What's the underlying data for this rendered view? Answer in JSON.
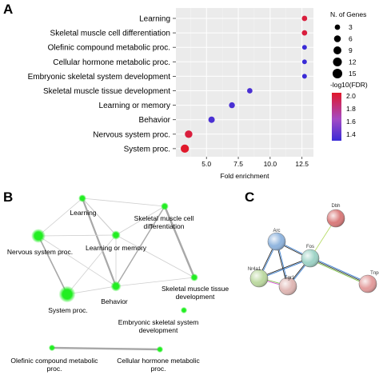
{
  "panels": {
    "a": {
      "letter": "A"
    },
    "b": {
      "letter": "B"
    },
    "c": {
      "letter": "C"
    }
  },
  "chart_data": {
    "type": "scatter",
    "categories": [
      "Learning",
      "Skeletal muscle cell differentiation",
      "Olefinic compound metabolic proc.",
      "Cellular hormone metabolic proc.",
      "Embryonic skeletal system development",
      "Skeletal muscle tissue development",
      "Learning or memory",
      "Behavior",
      "Nervous system proc.",
      "System proc."
    ],
    "x": [
      12.7,
      12.7,
      12.7,
      12.7,
      12.7,
      8.4,
      7.0,
      5.4,
      3.6,
      3.3
    ],
    "size_genes": [
      3,
      3,
      2,
      2,
      2,
      3,
      4,
      5,
      8,
      10
    ],
    "neg_log10_fdr": [
      2.0,
      2.0,
      1.3,
      1.3,
      1.3,
      1.35,
      1.35,
      1.35,
      2.0,
      2.05
    ],
    "xlabel": "Fold enrichment",
    "xticks": [
      "5.0",
      "7.5",
      "10.0",
      "12.5"
    ],
    "xtick_values": [
      5.0,
      7.5,
      10.0,
      12.5
    ],
    "xlim": [
      2.6,
      13.4
    ],
    "grid": true,
    "legend_position": "right",
    "size_legend": {
      "title": "N. of Genes",
      "values": [
        3,
        6,
        9,
        12,
        15
      ]
    },
    "color_legend": {
      "title": "-log10(FDR)",
      "ticks": [
        "1.4",
        "1.6",
        "1.8",
        "2.0"
      ],
      "tick_values": [
        1.4,
        1.6,
        1.8,
        2.0
      ],
      "range": [
        1.3,
        2.05
      ]
    }
  },
  "network_b": {
    "nodes": [
      {
        "id": "learning",
        "label": "Learning",
        "size": 3
      },
      {
        "id": "smcd",
        "label": "Skeletal muscle cell differentiation",
        "size": 3
      },
      {
        "id": "nsp",
        "label": "Nervous system proc.",
        "size": 8
      },
      {
        "id": "lom",
        "label": "Learning or memory",
        "size": 4
      },
      {
        "id": "sp",
        "label": "System proc.",
        "size": 10
      },
      {
        "id": "beh",
        "label": "Behavior",
        "size": 5
      },
      {
        "id": "smtd",
        "label": "Skeletal muscle tissue development",
        "size": 3
      },
      {
        "id": "essd",
        "label": "Embryonic skeletal system development",
        "size": 2
      },
      {
        "id": "ocmp",
        "label": "Olefinic compound metabolic proc.",
        "size": 2
      },
      {
        "id": "chmp",
        "label": "Cellular hormone metabolic proc.",
        "size": 2
      }
    ],
    "edges": [
      [
        "learning",
        "lom"
      ],
      [
        "learning",
        "beh"
      ],
      [
        "learning",
        "nsp"
      ],
      [
        "learning",
        "smcd"
      ],
      [
        "smcd",
        "lom"
      ],
      [
        "smcd",
        "smtd"
      ],
      [
        "smcd",
        "beh"
      ],
      [
        "lom",
        "beh"
      ],
      [
        "lom",
        "nsp"
      ],
      [
        "lom",
        "sp"
      ],
      [
        "lom",
        "smtd"
      ],
      [
        "nsp",
        "sp"
      ],
      [
        "nsp",
        "beh"
      ],
      [
        "sp",
        "beh"
      ],
      [
        "beh",
        "smtd"
      ],
      [
        "ocmp",
        "chmp"
      ]
    ]
  },
  "network_c": {
    "nodes": [
      {
        "id": "dbh",
        "label": "Dbh",
        "color": "#d97a7a"
      },
      {
        "id": "arc",
        "label": "Arc",
        "color": "#8fb4de"
      },
      {
        "id": "fos",
        "label": "Fos",
        "color": "#9ed3c6"
      },
      {
        "id": "nr4a1",
        "label": "Nr4a1",
        "color": "#bcd9a0"
      },
      {
        "id": "egr1",
        "label": "Egr1",
        "color": "#e0b7b4"
      },
      {
        "id": "tnpo",
        "label": "Tnpo",
        "color": "#e39c9c"
      }
    ],
    "edges": [
      [
        "arc",
        "fos"
      ],
      [
        "arc",
        "nr4a1"
      ],
      [
        "arc",
        "egr1"
      ],
      [
        "fos",
        "nr4a1"
      ],
      [
        "fos",
        "egr1"
      ],
      [
        "nr4a1",
        "egr1"
      ],
      [
        "fos",
        "dbh"
      ],
      [
        "fos",
        "tnpo"
      ]
    ]
  },
  "colors": {
    "fdr_low": "#3a2bd6",
    "fdr_mid": "#a44bc4",
    "fdr_high": "#e0182a",
    "network_node": "#22ee22",
    "grid_bg": "#ebebeb"
  }
}
